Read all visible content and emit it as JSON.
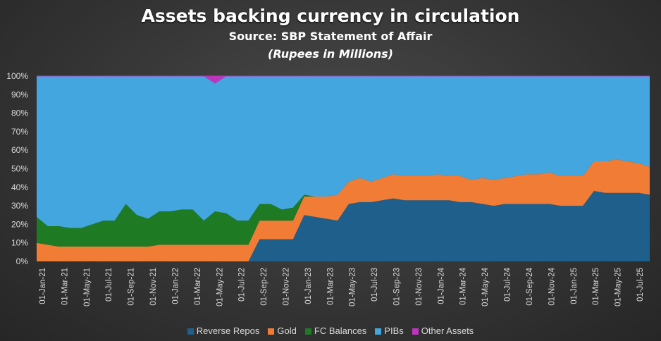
{
  "title": "Assets backing currency in circulation",
  "subtitle": "Source: SBP Statement of Affair",
  "unit_note": "(Rupees in Millions)",
  "colors": {
    "Reverse Repos": "#1f5f8b",
    "Gold": "#f07c36",
    "FC Balances": "#1e7a23",
    "PIBs": "#43a6de",
    "Other Assets": "#bd35bd"
  },
  "chart_data": {
    "type": "area",
    "stacked": true,
    "percent": true,
    "ylim": [
      0,
      100
    ],
    "y_ticks": [
      "0%",
      "10%",
      "20%",
      "30%",
      "40%",
      "50%",
      "60%",
      "70%",
      "80%",
      "90%",
      "100%"
    ],
    "x_tick_labels": [
      "01-Jan-21",
      "01-Mar-21",
      "01-May-21",
      "01-Jul-21",
      "01-Sep-21",
      "01-Nov-21",
      "01-Jan-22",
      "01-Mar-22",
      "01-May-22",
      "01-Jul-22",
      "01-Sep-22",
      "01-Nov-22",
      "01-Jan-23",
      "01-Mar-23",
      "01-May-23",
      "01-Jul-23",
      "01-Sep-23",
      "01-Nov-23",
      "01-Jan-24",
      "01-Mar-24",
      "01-May-24",
      "01-Jul-24",
      "01-Sep-24",
      "01-Nov-24",
      "01-Jan-25",
      "01-Mar-25",
      "01-May-25",
      "01-Jul-25"
    ],
    "legend": "bottom",
    "x": [
      "2021-01-01",
      "2021-02-01",
      "2021-03-01",
      "2021-04-01",
      "2021-05-01",
      "2021-06-01",
      "2021-07-01",
      "2021-08-01",
      "2021-09-01",
      "2021-10-01",
      "2021-11-01",
      "2021-12-01",
      "2022-01-01",
      "2022-02-01",
      "2022-03-01",
      "2022-04-01",
      "2022-05-01",
      "2022-06-01",
      "2022-07-01",
      "2022-08-01",
      "2022-09-01",
      "2022-10-01",
      "2022-11-01",
      "2022-12-01",
      "2023-01-01",
      "2023-02-01",
      "2023-03-01",
      "2023-04-01",
      "2023-05-01",
      "2023-06-01",
      "2023-07-01",
      "2023-08-01",
      "2023-09-01",
      "2023-10-01",
      "2023-11-01",
      "2023-12-01",
      "2024-01-01",
      "2024-02-01",
      "2024-03-01",
      "2024-04-01",
      "2024-05-01",
      "2024-06-01",
      "2024-07-01",
      "2024-08-01",
      "2024-09-01",
      "2024-10-01",
      "2024-11-01",
      "2024-12-01",
      "2025-01-01",
      "2025-02-01",
      "2025-03-01",
      "2025-04-01",
      "2025-05-01",
      "2025-06-01",
      "2025-07-01",
      "2025-08-01"
    ],
    "series": [
      {
        "name": "Reverse Repos",
        "values": [
          0,
          0,
          0,
          0,
          0,
          0,
          0,
          0,
          0,
          0,
          0,
          0,
          0,
          0,
          0,
          0,
          0,
          0,
          0,
          0,
          12,
          12,
          12,
          12,
          25,
          24,
          23,
          22,
          31,
          32,
          32,
          33,
          34,
          33,
          33,
          33,
          33,
          33,
          32,
          32,
          31,
          30,
          31,
          31,
          31,
          31,
          31,
          30,
          30,
          30,
          38,
          37,
          37,
          37,
          37,
          36
        ]
      },
      {
        "name": "Gold",
        "values": [
          10,
          9,
          8,
          8,
          8,
          8,
          8,
          8,
          8,
          8,
          8,
          9,
          9,
          9,
          9,
          9,
          9,
          9,
          9,
          9,
          10,
          10,
          10,
          10,
          10,
          11,
          12,
          14,
          12,
          13,
          11,
          12,
          13,
          13,
          13,
          13,
          14,
          13,
          14,
          12,
          14,
          14,
          14,
          15,
          16,
          16,
          17,
          16,
          16,
          16,
          16,
          17,
          18,
          17,
          16,
          15
        ]
      },
      {
        "name": "FC Balances",
        "values": [
          14,
          10,
          11,
          10,
          10,
          12,
          14,
          14,
          23,
          17,
          15,
          18,
          18,
          19,
          19,
          13,
          18,
          17,
          13,
          13,
          9,
          9,
          6,
          7,
          1,
          0,
          0,
          0,
          0,
          0,
          0,
          0,
          0,
          0,
          0,
          0,
          0,
          0,
          0,
          0,
          0,
          0,
          0,
          0,
          0,
          0,
          0,
          0,
          0,
          0,
          0,
          0,
          0,
          0,
          0,
          0
        ]
      },
      {
        "name": "PIBs",
        "values": [
          76,
          81,
          81,
          82,
          82,
          80,
          78,
          78,
          69,
          75,
          77,
          73,
          73,
          72,
          72,
          78,
          69,
          74,
          78,
          78,
          69,
          69,
          72,
          71,
          64,
          65,
          65,
          64,
          57,
          55,
          57,
          55,
          53,
          54,
          54,
          54,
          53,
          54,
          54,
          56,
          55,
          56,
          55,
          54,
          53,
          53,
          52,
          54,
          54,
          54,
          46,
          46,
          45,
          46,
          47,
          49
        ]
      },
      {
        "name": "Other Assets",
        "values": [
          0,
          0,
          0,
          0,
          0,
          0,
          0,
          0,
          0,
          0,
          0,
          0,
          0,
          0,
          0,
          0,
          4,
          0,
          0,
          0,
          0,
          0,
          0,
          0,
          0,
          0,
          0,
          0,
          0,
          0,
          0,
          0,
          0,
          0,
          0,
          0,
          0,
          0,
          0,
          0,
          0,
          0,
          0,
          0,
          0,
          0,
          0,
          0,
          0,
          0,
          0,
          0,
          0,
          0,
          0,
          0
        ]
      }
    ]
  }
}
